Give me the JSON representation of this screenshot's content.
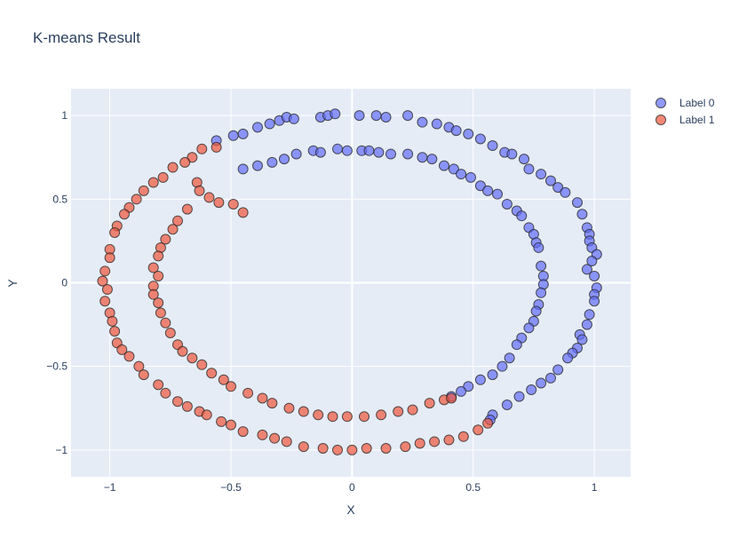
{
  "chart_data": {
    "type": "scatter",
    "title": "K-means Result",
    "xlabel": "X",
    "ylabel": "Y",
    "xlim": [
      -1.16,
      1.15
    ],
    "ylim": [
      -1.16,
      1.16
    ],
    "x_ticks": [
      -1,
      -0.5,
      0,
      0.5,
      1
    ],
    "x_tick_labels": [
      "−1",
      "−0.5",
      "0",
      "0.5",
      "1"
    ],
    "y_ticks": [
      -1,
      -0.5,
      0,
      0.5,
      1
    ],
    "y_tick_labels": [
      "−1",
      "−0.5",
      "0",
      "0.5",
      "1"
    ],
    "grid": true,
    "legend_position": "top-right",
    "series": [
      {
        "name": "Label 0",
        "color": "#636efa",
        "points": [
          [
            -0.56,
            0.85
          ],
          [
            -0.49,
            0.88
          ],
          [
            -0.45,
            0.89
          ],
          [
            -0.39,
            0.93
          ],
          [
            -0.34,
            0.95
          ],
          [
            -0.3,
            0.97
          ],
          [
            -0.27,
            0.99
          ],
          [
            -0.24,
            0.98
          ],
          [
            -0.13,
            0.99
          ],
          [
            -0.1,
            1.0
          ],
          [
            -0.07,
            1.01
          ],
          [
            0.03,
            1.0
          ],
          [
            0.1,
            1.0
          ],
          [
            0.14,
            0.99
          ],
          [
            0.23,
            1.0
          ],
          [
            0.29,
            0.96
          ],
          [
            0.35,
            0.95
          ],
          [
            0.4,
            0.93
          ],
          [
            0.43,
            0.91
          ],
          [
            0.48,
            0.89
          ],
          [
            0.53,
            0.86
          ],
          [
            0.58,
            0.82
          ],
          [
            0.63,
            0.78
          ],
          [
            0.66,
            0.77
          ],
          [
            0.71,
            0.74
          ],
          [
            0.73,
            0.68
          ],
          [
            0.78,
            0.65
          ],
          [
            0.82,
            0.61
          ],
          [
            0.85,
            0.57
          ],
          [
            0.88,
            0.54
          ],
          [
            0.93,
            0.48
          ],
          [
            0.95,
            0.41
          ],
          [
            0.97,
            0.33
          ],
          [
            0.98,
            0.29
          ],
          [
            0.98,
            0.25
          ],
          [
            0.99,
            0.21
          ],
          [
            1.01,
            0.17
          ],
          [
            0.99,
            0.13
          ],
          [
            0.97,
            0.08
          ],
          [
            1.0,
            0.04
          ],
          [
            1.01,
            -0.03
          ],
          [
            1.0,
            -0.07
          ],
          [
            1.0,
            -0.11
          ],
          [
            0.98,
            -0.19
          ],
          [
            0.97,
            -0.25
          ],
          [
            0.94,
            -0.31
          ],
          [
            0.95,
            -0.34
          ],
          [
            0.93,
            -0.39
          ],
          [
            0.91,
            -0.42
          ],
          [
            0.89,
            -0.45
          ],
          [
            0.85,
            -0.52
          ],
          [
            0.82,
            -0.57
          ],
          [
            0.78,
            -0.6
          ],
          [
            0.74,
            -0.64
          ],
          [
            0.69,
            -0.68
          ],
          [
            0.64,
            -0.73
          ],
          [
            0.58,
            -0.79
          ],
          [
            0.57,
            -0.82
          ],
          [
            -0.45,
            0.68
          ],
          [
            -0.39,
            0.7
          ],
          [
            -0.33,
            0.72
          ],
          [
            -0.28,
            0.74
          ],
          [
            -0.23,
            0.77
          ],
          [
            -0.16,
            0.79
          ],
          [
            -0.13,
            0.78
          ],
          [
            -0.06,
            0.8
          ],
          [
            -0.02,
            0.79
          ],
          [
            0.04,
            0.79
          ],
          [
            0.07,
            0.79
          ],
          [
            0.11,
            0.78
          ],
          [
            0.16,
            0.77
          ],
          [
            0.23,
            0.77
          ],
          [
            0.29,
            0.75
          ],
          [
            0.33,
            0.74
          ],
          [
            0.38,
            0.7
          ],
          [
            0.42,
            0.68
          ],
          [
            0.45,
            0.65
          ],
          [
            0.49,
            0.63
          ],
          [
            0.53,
            0.58
          ],
          [
            0.56,
            0.55
          ],
          [
            0.6,
            0.53
          ],
          [
            0.64,
            0.47
          ],
          [
            0.68,
            0.43
          ],
          [
            0.7,
            0.4
          ],
          [
            0.73,
            0.33
          ],
          [
            0.75,
            0.29
          ],
          [
            0.76,
            0.24
          ],
          [
            0.77,
            0.21
          ],
          [
            0.78,
            0.1
          ],
          [
            0.79,
            0.04
          ],
          [
            0.79,
            -0.01
          ],
          [
            0.78,
            -0.06
          ],
          [
            0.77,
            -0.13
          ],
          [
            0.76,
            -0.17
          ],
          [
            0.75,
            -0.23
          ],
          [
            0.73,
            -0.27
          ],
          [
            0.7,
            -0.33
          ],
          [
            0.68,
            -0.37
          ],
          [
            0.65,
            -0.45
          ],
          [
            0.62,
            -0.5
          ],
          [
            0.58,
            -0.55
          ],
          [
            0.53,
            -0.58
          ],
          [
            0.48,
            -0.62
          ],
          [
            0.45,
            -0.65
          ],
          [
            0.41,
            -0.68
          ]
        ]
      },
      {
        "name": "Label 1",
        "color": "#ef553b",
        "points": [
          [
            -0.56,
            0.81
          ],
          [
            -0.62,
            0.8
          ],
          [
            -0.66,
            0.75
          ],
          [
            -0.69,
            0.72
          ],
          [
            -0.74,
            0.69
          ],
          [
            -0.78,
            0.63
          ],
          [
            -0.82,
            0.6
          ],
          [
            -0.86,
            0.55
          ],
          [
            -0.89,
            0.5
          ],
          [
            -0.92,
            0.45
          ],
          [
            -0.94,
            0.41
          ],
          [
            -0.97,
            0.34
          ],
          [
            -0.98,
            0.3
          ],
          [
            -1.0,
            0.2
          ],
          [
            -1.0,
            0.15
          ],
          [
            -1.02,
            0.07
          ],
          [
            -1.03,
            0.01
          ],
          [
            -1.01,
            -0.04
          ],
          [
            -1.02,
            -0.11
          ],
          [
            -1.0,
            -0.18
          ],
          [
            -0.99,
            -0.23
          ],
          [
            -0.98,
            -0.29
          ],
          [
            -0.97,
            -0.36
          ],
          [
            -0.95,
            -0.4
          ],
          [
            -0.92,
            -0.44
          ],
          [
            -0.88,
            -0.5
          ],
          [
            -0.86,
            -0.55
          ],
          [
            -0.8,
            -0.61
          ],
          [
            -0.77,
            -0.66
          ],
          [
            -0.72,
            -0.71
          ],
          [
            -0.68,
            -0.74
          ],
          [
            -0.63,
            -0.77
          ],
          [
            -0.6,
            -0.79
          ],
          [
            -0.54,
            -0.83
          ],
          [
            -0.5,
            -0.85
          ],
          [
            -0.45,
            -0.89
          ],
          [
            -0.37,
            -0.91
          ],
          [
            -0.32,
            -0.93
          ],
          [
            -0.27,
            -0.95
          ],
          [
            -0.2,
            -0.98
          ],
          [
            -0.12,
            -0.99
          ],
          [
            -0.06,
            -1.0
          ],
          [
            0.0,
            -1.0
          ],
          [
            0.06,
            -0.99
          ],
          [
            0.14,
            -0.99
          ],
          [
            0.22,
            -0.98
          ],
          [
            0.28,
            -0.96
          ],
          [
            0.34,
            -0.95
          ],
          [
            0.4,
            -0.94
          ],
          [
            0.46,
            -0.92
          ],
          [
            0.52,
            -0.88
          ],
          [
            0.56,
            -0.84
          ],
          [
            -0.64,
            0.6
          ],
          [
            -0.63,
            0.55
          ],
          [
            -0.59,
            0.51
          ],
          [
            -0.55,
            0.48
          ],
          [
            -0.49,
            0.47
          ],
          [
            -0.45,
            0.42
          ],
          [
            -0.68,
            0.44
          ],
          [
            -0.72,
            0.37
          ],
          [
            -0.74,
            0.32
          ],
          [
            -0.77,
            0.26
          ],
          [
            -0.79,
            0.21
          ],
          [
            -0.8,
            0.16
          ],
          [
            -0.82,
            0.09
          ],
          [
            -0.8,
            0.04
          ],
          [
            -0.82,
            -0.02
          ],
          [
            -0.82,
            -0.07
          ],
          [
            -0.8,
            -0.12
          ],
          [
            -0.79,
            -0.18
          ],
          [
            -0.77,
            -0.24
          ],
          [
            -0.75,
            -0.3
          ],
          [
            -0.72,
            -0.37
          ],
          [
            -0.7,
            -0.41
          ],
          [
            -0.66,
            -0.45
          ],
          [
            -0.62,
            -0.49
          ],
          [
            -0.58,
            -0.54
          ],
          [
            -0.53,
            -0.58
          ],
          [
            -0.5,
            -0.62
          ],
          [
            -0.43,
            -0.66
          ],
          [
            -0.37,
            -0.69
          ],
          [
            -0.33,
            -0.72
          ],
          [
            -0.26,
            -0.75
          ],
          [
            -0.2,
            -0.77
          ],
          [
            -0.14,
            -0.79
          ],
          [
            -0.08,
            -0.8
          ],
          [
            -0.02,
            -0.8
          ],
          [
            0.05,
            -0.8
          ],
          [
            0.12,
            -0.79
          ],
          [
            0.19,
            -0.77
          ],
          [
            0.25,
            -0.76
          ],
          [
            0.32,
            -0.72
          ],
          [
            0.38,
            -0.7
          ],
          [
            0.41,
            -0.69
          ]
        ]
      }
    ]
  }
}
